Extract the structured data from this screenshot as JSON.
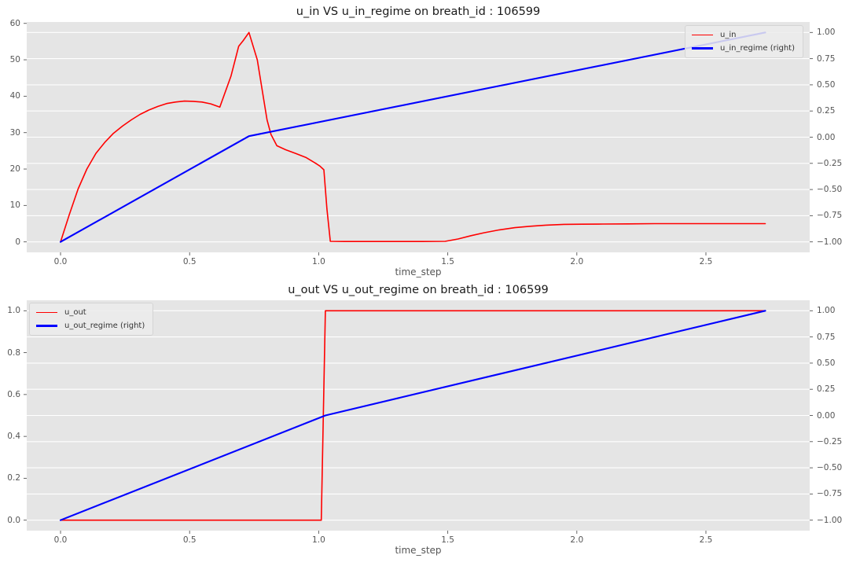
{
  "style": {
    "figure_bg": "#ffffff",
    "axes_bg": "#e5e5e5",
    "grid_color": "#ffffff",
    "tick_color": "#555555",
    "label_color": "#555555",
    "title_color": "#1a1a1a",
    "legend_bg": "#ececec",
    "legend_border": "#d4d4d4",
    "red": "#ff0000",
    "blue": "#0000ff"
  },
  "chart_data": [
    {
      "type": "line",
      "title": "u_in VS u_in_regime on breath_id : 106599",
      "xlabel": "time_step",
      "ylabel": "",
      "xlim": [
        -0.131,
        2.902
      ],
      "x_ticks": [
        0,
        0.5,
        1,
        1.5,
        2,
        2.5
      ],
      "x_tick_labels": [
        "0.0",
        "0.5",
        "1.0",
        "1.5",
        "2.0",
        "2.5"
      ],
      "axes": {
        "left": {
          "lim": [
            -2.875,
            60.375
          ],
          "ticks": [
            0,
            10,
            20,
            30,
            40,
            50,
            60
          ],
          "labels": [
            "0",
            "10",
            "20",
            "30",
            "40",
            "50",
            "60"
          ]
        },
        "right": {
          "lim": [
            -1.1,
            1.1
          ],
          "ticks": [
            1,
            0.75,
            0.5,
            0.25,
            0,
            -0.25,
            -0.5,
            -0.75,
            -1
          ],
          "labels": [
            "1.00",
            "0.75",
            "0.50",
            "0.25",
            "0.00",
            "−0.25",
            "−0.50",
            "−0.75",
            "−1.00"
          ]
        }
      },
      "grid": {
        "horizontal": true,
        "vertical": false,
        "from_axis": "right"
      },
      "legend": {
        "loc": "upper right",
        "entries": [
          {
            "label": "u_in",
            "color": "#ff0000",
            "sample_lw": 1.5
          },
          {
            "label": "u_in_regime (right)",
            "color": "#0000ff",
            "sample_lw": 3
          }
        ]
      },
      "series": [
        {
          "name": "u_in",
          "yaxis": "left",
          "color": "#ff0000",
          "linewidth": 1.6,
          "x": [
            0,
            0.034,
            0.068,
            0.102,
            0.137,
            0.171,
            0.205,
            0.24,
            0.274,
            0.308,
            0.342,
            0.377,
            0.411,
            0.445,
            0.48,
            0.514,
            0.548,
            0.582,
            0.617,
            0.66,
            0.69,
            0.708,
            0.73,
            0.762,
            0.785,
            0.8,
            0.815,
            0.838,
            0.872,
            0.91,
            0.95,
            0.99,
            1.005,
            1.02,
            1.032,
            1.045,
            1.1,
            1.2,
            1.3,
            1.4,
            1.49,
            1.54,
            1.59,
            1.64,
            1.7,
            1.76,
            1.82,
            1.88,
            1.95,
            2.02,
            2.1,
            2.2,
            2.3,
            2.45,
            2.6,
            2.73
          ],
          "y": [
            0,
            7.5,
            14.5,
            20,
            24.3,
            27.3,
            29.8,
            31.8,
            33.5,
            35,
            36.2,
            37.2,
            38,
            38.4,
            38.65,
            38.6,
            38.4,
            37.9,
            37,
            45.5,
            53.7,
            55.3,
            57.5,
            50,
            40,
            33.5,
            29.5,
            26.4,
            25.3,
            24.3,
            23.2,
            21.5,
            20.8,
            19.8,
            9,
            0.15,
            0.1,
            0.1,
            0.1,
            0.1,
            0.15,
            0.8,
            1.7,
            2.5,
            3.3,
            3.9,
            4.3,
            4.6,
            4.8,
            4.85,
            4.9,
            4.95,
            5,
            5,
            5,
            5
          ]
        },
        {
          "name": "u_in_regime",
          "yaxis": "right",
          "color": "#0000ff",
          "linewidth": 2.1,
          "x": [
            0,
            0.73,
            2.73
          ],
          "y": [
            -1,
            0.01,
            1
          ]
        }
      ]
    },
    {
      "type": "line",
      "title": "u_out VS u_out_regime on breath_id : 106599",
      "xlabel": "time_step",
      "ylabel": "",
      "xlim": [
        -0.131,
        2.902
      ],
      "x_ticks": [
        0,
        0.5,
        1,
        1.5,
        2,
        2.5
      ],
      "x_tick_labels": [
        "0.0",
        "0.5",
        "1.0",
        "1.5",
        "2.0",
        "2.5"
      ],
      "axes": {
        "left": {
          "lim": [
            -0.05,
            1.05
          ],
          "ticks": [
            0,
            0.2,
            0.4,
            0.6,
            0.8,
            1
          ],
          "labels": [
            "0.0",
            "0.2",
            "0.4",
            "0.6",
            "0.8",
            "1.0"
          ]
        },
        "right": {
          "lim": [
            -1.1,
            1.1
          ],
          "ticks": [
            1,
            0.75,
            0.5,
            0.25,
            0,
            -0.25,
            -0.5,
            -0.75,
            -1
          ],
          "labels": [
            "1.00",
            "0.75",
            "0.50",
            "0.25",
            "0.00",
            "−0.25",
            "−0.50",
            "−0.75",
            "−1.00"
          ]
        }
      },
      "grid": {
        "horizontal": true,
        "vertical": false,
        "from_axis": "right"
      },
      "legend": {
        "loc": "upper left",
        "entries": [
          {
            "label": "u_out",
            "color": "#ff0000",
            "sample_lw": 1.5
          },
          {
            "label": "u_out_regime (right)",
            "color": "#0000ff",
            "sample_lw": 3
          }
        ]
      },
      "series": [
        {
          "name": "u_out",
          "yaxis": "left",
          "color": "#ff0000",
          "linewidth": 1.6,
          "x": [
            0,
            1.01,
            1.026,
            2.73
          ],
          "y": [
            0,
            0,
            1,
            1
          ]
        },
        {
          "name": "u_out_regime",
          "yaxis": "right",
          "color": "#0000ff",
          "linewidth": 2.1,
          "x": [
            0,
            1.026,
            2.73
          ],
          "y": [
            -1,
            0,
            1
          ]
        }
      ]
    }
  ]
}
